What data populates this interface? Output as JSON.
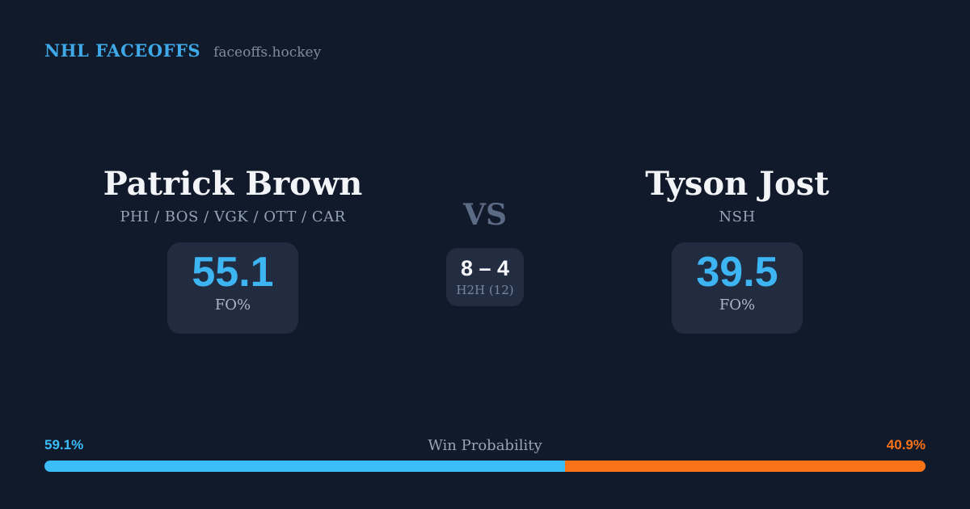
{
  "header": {
    "brand": "NHL FACEOFFS",
    "site": "faceoffs.hockey"
  },
  "players": {
    "left": {
      "name": "Patrick Brown",
      "teams": "PHI / BOS / VGK / OTT / CAR",
      "fo_pct": "55.1",
      "fo_label": "FO%"
    },
    "right": {
      "name": "Tyson Jost",
      "teams": "NSH",
      "fo_pct": "39.5",
      "fo_label": "FO%"
    }
  },
  "center": {
    "vs_label": "VS",
    "h2h_score": "8 – 4",
    "h2h_label": "H2H (12)"
  },
  "win_probability": {
    "label": "Win Probability",
    "left_pct_text": "59.1%",
    "right_pct_text": "40.9%",
    "left_value": 59.1,
    "right_value": 40.9,
    "left_color": "#3bbdf8",
    "right_color": "#f97316"
  },
  "colors": {
    "background": "#111a2b",
    "box": "#212c40",
    "accent_blue": "#3db5f2",
    "accent_orange": "#f97316",
    "brand_blue": "#3fa9e8"
  },
  "chart_data": {
    "type": "bar",
    "title": "Win Probability",
    "categories": [
      "Patrick Brown",
      "Tyson Jost"
    ],
    "values": [
      59.1,
      40.9
    ],
    "colors": [
      "#3bbdf8",
      "#f97316"
    ],
    "xlabel": "",
    "ylabel": "Win Probability (%)",
    "ylim": [
      0,
      100
    ],
    "legend_position": "none",
    "grid": false,
    "annotations": {
      "faceoff_pct": {
        "Patrick Brown": 55.1,
        "Tyson Jost": 39.5
      },
      "head_to_head": {
        "score": "8 – 4",
        "total_matchups": 12
      }
    }
  }
}
